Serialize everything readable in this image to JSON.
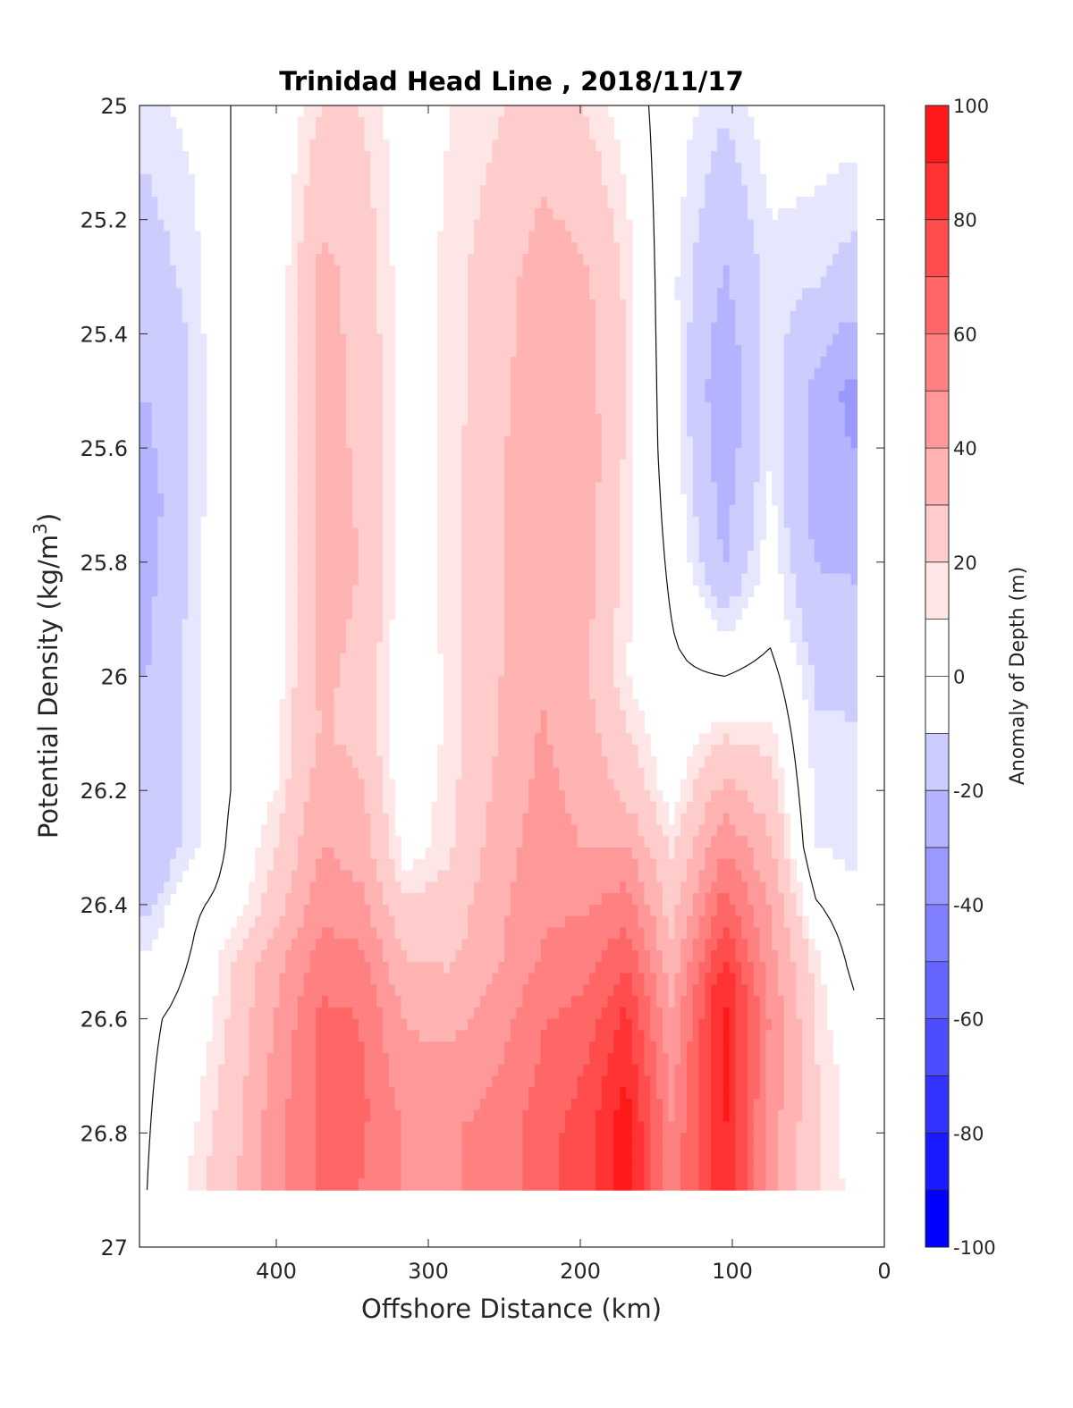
{
  "chart_data": {
    "type": "heatmap",
    "title": "Trinidad Head Line , 2018/11/17",
    "xlabel": "Offshore Distance (km)",
    "ylabel_main": "Potential Density (kg/m",
    "ylabel_sup": "3",
    "ylabel_close": ")",
    "colorbar_label": "Anomaly of Depth (m)",
    "xlim": [
      490,
      0
    ],
    "ylim": [
      27,
      25
    ],
    "x_reversed": true,
    "y_reversed": true,
    "x_ticks": [
      400,
      300,
      200,
      100,
      0
    ],
    "x_tick_labels": [
      "400",
      "300",
      "200",
      "100",
      "0"
    ],
    "y_ticks": [
      25,
      25.2,
      25.4,
      25.6,
      25.8,
      26,
      26.2,
      26.4,
      26.6,
      26.8,
      27
    ],
    "y_tick_labels": [
      "25",
      "25.2",
      "25.4",
      "25.6",
      "25.8",
      "26",
      "26.2",
      "26.4",
      "26.6",
      "26.8",
      "27"
    ],
    "colorbar": {
      "range": [
        -100,
        100
      ],
      "level_step": 10,
      "tick_values": [
        100,
        80,
        60,
        40,
        20,
        0,
        -20,
        -40,
        -60,
        -80,
        -100
      ],
      "tick_labels": [
        "100",
        "80",
        "60",
        "40",
        "20",
        "0",
        "-20",
        "-40",
        "-60",
        "-80",
        "-100"
      ],
      "colors": [
        "#ff0000",
        "#ff1a1a",
        "#ff3333",
        "#ff4d4d",
        "#ff6666",
        "#ff8080",
        "#ff9999",
        "#ffb3b3",
        "#ffcccc",
        "#ffe6e6",
        "#ffffff",
        "#e6e6ff",
        "#ccccff",
        "#b3b3ff",
        "#9999ff",
        "#8080ff",
        "#6666ff",
        "#4d4dff",
        "#3333ff",
        "#1a1aff",
        "#0000ff"
      ]
    },
    "sections": [
      {
        "distance_km": 485,
        "anomaly_m": [
          [
            25.0,
            -12
          ],
          [
            25.4,
            -22
          ],
          [
            25.7,
            -30
          ],
          [
            26.0,
            -25
          ],
          [
            26.35,
            -22
          ],
          [
            26.45,
            -12
          ],
          [
            26.6,
            -2
          ],
          [
            26.9,
            0
          ]
        ]
      },
      {
        "distance_km": 455,
        "anomaly_m": [
          [
            25.0,
            -8
          ],
          [
            25.4,
            -14
          ],
          [
            25.7,
            -14
          ],
          [
            26.0,
            -12
          ],
          [
            26.3,
            -12
          ],
          [
            26.4,
            -2
          ],
          [
            26.6,
            4
          ],
          [
            26.9,
            12
          ]
        ]
      },
      {
        "distance_km": 430,
        "anomaly_m": [
          [
            25.0,
            0
          ],
          [
            25.4,
            0
          ],
          [
            25.8,
            0
          ],
          [
            26.2,
            0
          ],
          [
            26.4,
            4
          ],
          [
            26.5,
            14
          ],
          [
            26.6,
            16
          ],
          [
            26.9,
            22
          ]
        ]
      },
      {
        "distance_km": 400,
        "anomaly_m": [
          [
            25.0,
            3
          ],
          [
            25.4,
            4
          ],
          [
            25.8,
            4
          ],
          [
            26.2,
            10
          ],
          [
            26.4,
            20
          ],
          [
            26.5,
            32
          ],
          [
            26.6,
            36
          ],
          [
            26.8,
            42
          ],
          [
            26.9,
            42
          ]
        ]
      },
      {
        "distance_km": 370,
        "anomaly_m": [
          [
            25.0,
            15
          ],
          [
            25.3,
            28
          ],
          [
            25.8,
            28
          ],
          [
            26.1,
            26
          ],
          [
            26.35,
            38
          ],
          [
            26.5,
            50
          ],
          [
            26.6,
            58
          ],
          [
            26.75,
            58
          ],
          [
            26.9,
            58
          ]
        ]
      },
      {
        "distance_km": 345,
        "anomaly_m": [
          [
            25.0,
            15
          ],
          [
            25.3,
            22
          ],
          [
            25.8,
            25
          ],
          [
            26.1,
            22
          ],
          [
            26.35,
            34
          ],
          [
            26.5,
            48
          ],
          [
            26.6,
            55
          ],
          [
            26.75,
            58
          ],
          [
            26.9,
            55
          ]
        ]
      },
      {
        "distance_km": 315,
        "anomaly_m": [
          [
            25.0,
            5
          ],
          [
            25.3,
            5
          ],
          [
            25.8,
            5
          ],
          [
            26.1,
            2
          ],
          [
            26.3,
            6
          ],
          [
            26.5,
            26
          ],
          [
            26.6,
            34
          ],
          [
            26.8,
            44
          ],
          [
            26.9,
            44
          ]
        ]
      },
      {
        "distance_km": 285,
        "anomaly_m": [
          [
            25.0,
            10
          ],
          [
            25.3,
            12
          ],
          [
            25.8,
            12
          ],
          [
            26.1,
            12
          ],
          [
            26.3,
            14
          ],
          [
            26.5,
            24
          ],
          [
            26.6,
            32
          ],
          [
            26.8,
            44
          ],
          [
            26.9,
            44
          ]
        ]
      },
      {
        "distance_km": 255,
        "anomaly_m": [
          [
            25.0,
            14
          ],
          [
            25.3,
            20
          ],
          [
            25.8,
            24
          ],
          [
            26.1,
            24
          ],
          [
            26.3,
            30
          ],
          [
            26.5,
            34
          ],
          [
            26.6,
            40
          ],
          [
            26.8,
            50
          ],
          [
            26.9,
            50
          ]
        ]
      },
      {
        "distance_km": 225,
        "anomaly_m": [
          [
            25.0,
            20
          ],
          [
            25.3,
            30
          ],
          [
            25.6,
            34
          ],
          [
            26.0,
            34
          ],
          [
            26.3,
            40
          ],
          [
            26.5,
            46
          ],
          [
            26.6,
            54
          ],
          [
            26.8,
            60
          ],
          [
            26.9,
            60
          ]
        ]
      },
      {
        "distance_km": 195,
        "anomaly_m": [
          [
            25.0,
            14
          ],
          [
            25.3,
            26
          ],
          [
            25.6,
            30
          ],
          [
            26.0,
            26
          ],
          [
            26.3,
            34
          ],
          [
            26.45,
            48
          ],
          [
            26.6,
            60
          ],
          [
            26.8,
            72
          ],
          [
            26.9,
            72
          ]
        ]
      },
      {
        "distance_km": 170,
        "anomaly_m": [
          [
            25.0,
            6
          ],
          [
            25.3,
            14
          ],
          [
            25.6,
            14
          ],
          [
            26.0,
            10
          ],
          [
            26.2,
            22
          ],
          [
            26.4,
            50
          ],
          [
            26.6,
            78
          ],
          [
            26.8,
            92
          ],
          [
            26.9,
            92
          ]
        ]
      },
      {
        "distance_km": 140,
        "anomaly_m": [
          [
            25.0,
            -6
          ],
          [
            25.3,
            -8
          ],
          [
            25.6,
            -6
          ],
          [
            25.9,
            0
          ],
          [
            26.2,
            6
          ],
          [
            26.4,
            20
          ],
          [
            26.6,
            36
          ],
          [
            26.8,
            46
          ],
          [
            26.9,
            46
          ]
        ]
      },
      {
        "distance_km": 105,
        "anomaly_m": [
          [
            25.0,
            -14
          ],
          [
            25.3,
            -26
          ],
          [
            25.5,
            -34
          ],
          [
            25.8,
            -26
          ],
          [
            26.0,
            0
          ],
          [
            26.2,
            28
          ],
          [
            26.4,
            60
          ],
          [
            26.55,
            86
          ],
          [
            26.7,
            88
          ],
          [
            26.8,
            86
          ],
          [
            26.9,
            86
          ]
        ]
      },
      {
        "distance_km": 75,
        "anomaly_m": [
          [
            25.0,
            -6
          ],
          [
            25.3,
            -12
          ],
          [
            25.6,
            -10
          ],
          [
            25.9,
            -4
          ],
          [
            26.1,
            12
          ],
          [
            26.4,
            34
          ],
          [
            26.6,
            44
          ],
          [
            26.8,
            40
          ],
          [
            26.9,
            40
          ]
        ]
      },
      {
        "distance_km": 45,
        "anomaly_m": [
          [
            25.0,
            -6
          ],
          [
            25.3,
            -14
          ],
          [
            25.5,
            -28
          ],
          [
            25.7,
            -30
          ],
          [
            26.0,
            -16
          ],
          [
            26.3,
            -10
          ],
          [
            26.5,
            12
          ],
          [
            26.7,
            16
          ],
          [
            26.9,
            16
          ]
        ]
      },
      {
        "distance_km": 22,
        "anomaly_m": [
          [
            25.0,
            -6
          ],
          [
            25.3,
            -18
          ],
          [
            25.5,
            -38
          ],
          [
            25.7,
            -32
          ],
          [
            26.0,
            -16
          ],
          [
            26.3,
            -12
          ],
          [
            26.5,
            -2
          ],
          [
            26.7,
            6
          ],
          [
            26.9,
            8
          ]
        ]
      }
    ]
  }
}
